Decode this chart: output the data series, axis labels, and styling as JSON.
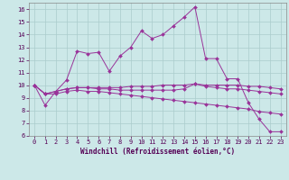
{
  "title": "",
  "xlabel": "Windchill (Refroidissement éolien,°C)",
  "ylabel": "",
  "background_color": "#cce8e8",
  "line_color": "#993399",
  "grid_color": "#aacccc",
  "xlim": [
    -0.5,
    23.5
  ],
  "ylim": [
    6,
    16.5
  ],
  "yticks": [
    6,
    7,
    8,
    9,
    10,
    11,
    12,
    13,
    14,
    15,
    16
  ],
  "xticks": [
    0,
    1,
    2,
    3,
    4,
    5,
    6,
    7,
    8,
    9,
    10,
    11,
    12,
    13,
    14,
    15,
    16,
    17,
    18,
    19,
    20,
    21,
    22,
    23
  ],
  "series": [
    [
      10.0,
      8.4,
      9.5,
      10.4,
      12.7,
      12.5,
      12.6,
      11.1,
      12.3,
      13.0,
      14.3,
      13.7,
      14.0,
      14.7,
      15.4,
      16.2,
      12.1,
      12.1,
      10.5,
      10.5,
      8.6,
      7.3,
      6.3,
      6.3
    ],
    [
      10.0,
      9.3,
      9.5,
      9.7,
      9.8,
      9.8,
      9.7,
      9.7,
      9.6,
      9.6,
      9.6,
      9.6,
      9.6,
      9.6,
      9.7,
      10.1,
      9.9,
      9.8,
      9.7,
      9.7,
      9.6,
      9.5,
      9.4,
      9.3
    ],
    [
      10.0,
      9.3,
      9.3,
      9.5,
      9.6,
      9.5,
      9.5,
      9.4,
      9.3,
      9.2,
      9.1,
      9.0,
      8.9,
      8.8,
      8.7,
      8.6,
      8.5,
      8.4,
      8.3,
      8.2,
      8.1,
      7.9,
      7.8,
      7.7
    ],
    [
      10.0,
      9.3,
      9.5,
      9.7,
      9.8,
      9.8,
      9.8,
      9.8,
      9.8,
      9.9,
      9.9,
      9.9,
      10.0,
      10.0,
      10.0,
      10.1,
      10.0,
      10.0,
      10.0,
      10.0,
      9.9,
      9.9,
      9.8,
      9.7
    ]
  ],
  "tick_fontsize": 5.0,
  "xlabel_fontsize": 5.5,
  "marker_size": 2.0,
  "linewidth": 0.7
}
